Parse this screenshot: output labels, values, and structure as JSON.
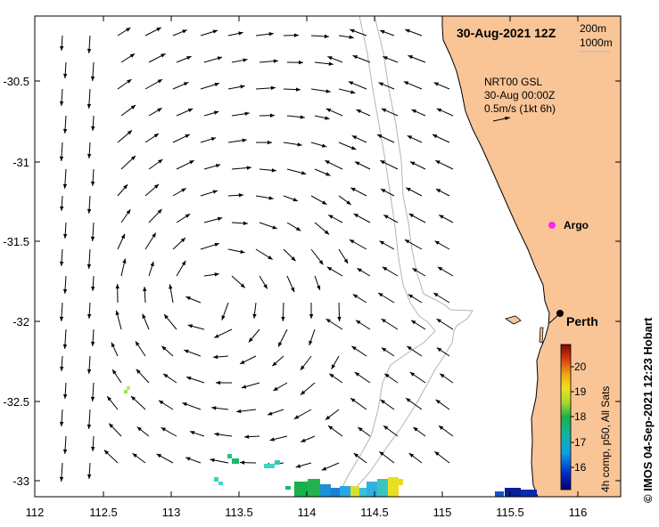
{
  "title": "30-Aug-2021 12Z",
  "depth_legend": [
    "200m",
    "1000m"
  ],
  "current_legend": {
    "line1": "NRT00 GSL",
    "line2": "30-Aug 00:00Z",
    "line3": "0.5m/s (1kt 6h)"
  },
  "places": [
    {
      "name": "Argo",
      "lon": 115.88,
      "lat": -31.41,
      "marker": "magenta-circle"
    },
    {
      "name": "Perth",
      "lon": 115.89,
      "lat": -31.95,
      "marker": "black-dot"
    }
  ],
  "colorbar": {
    "ticks": [
      "20",
      "19",
      "18",
      "17",
      "16"
    ],
    "label": "4h comp, p50, All Sats"
  },
  "x_axis": {
    "ticks": [
      "112",
      "112.5",
      "113",
      "113.5",
      "114",
      "114.5",
      "115",
      "115.5",
      "116"
    ],
    "range": [
      112,
      116.3
    ]
  },
  "y_axis": {
    "ticks": [
      "-30.5",
      "-31",
      "-31.5",
      "-32",
      "-32.5",
      "-33"
    ],
    "range": [
      -33.1,
      -30.1
    ]
  },
  "credit": "IMOS 04-Sep-2021 12:23 Hobart",
  "copyright": "©",
  "colors": {
    "land": "#f9c597",
    "coast_line": "#000000",
    "bathy_line": "#b4b4b4"
  }
}
